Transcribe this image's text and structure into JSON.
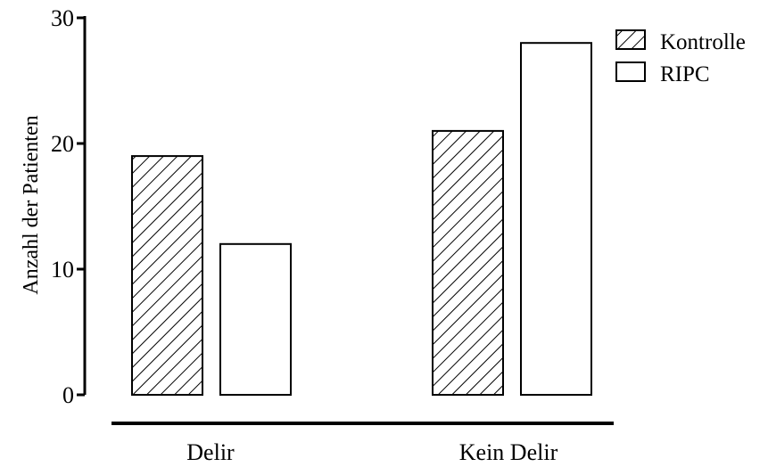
{
  "chart_data": {
    "type": "bar",
    "title": "",
    "xlabel": "",
    "ylabel": "Anzahl der Patienten",
    "ylim": [
      0,
      30
    ],
    "yticks": [
      0,
      10,
      20,
      30
    ],
    "categories": [
      "Delir",
      "Kein Delir"
    ],
    "series": [
      {
        "name": "Kontrolle",
        "values": [
          19,
          21
        ],
        "pattern": "hatched"
      },
      {
        "name": "RIPC",
        "values": [
          12,
          28
        ],
        "pattern": "open"
      }
    ],
    "legend": {
      "position": "top-right"
    },
    "grid": false
  },
  "colors": {
    "stroke": "#000000",
    "fill": "#ffffff"
  }
}
